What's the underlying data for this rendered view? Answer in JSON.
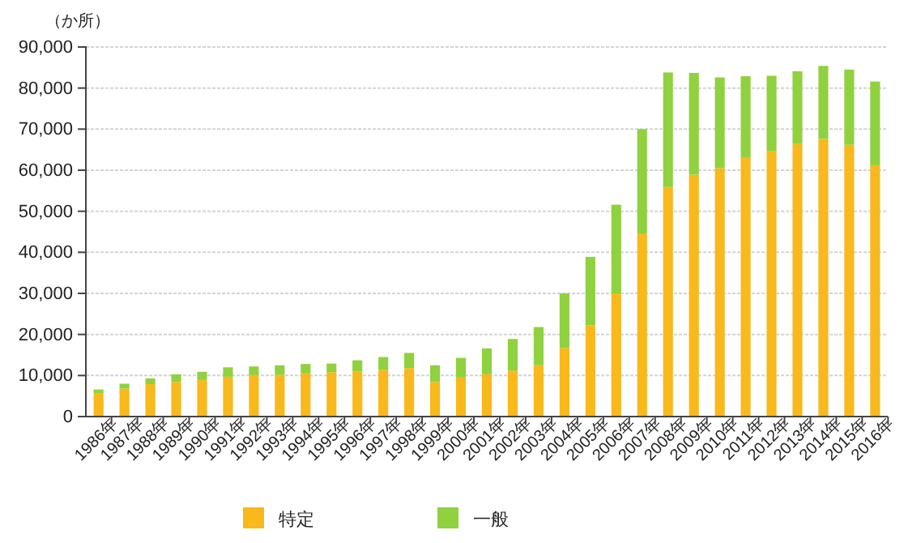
{
  "chart_data": {
    "type": "bar",
    "stacked": true,
    "ylabel": "（か所）",
    "categories": [
      "1986年",
      "1987年",
      "1988年",
      "1989年",
      "1990年",
      "1991年",
      "1992年",
      "1993年",
      "1994年",
      "1995年",
      "1996年",
      "1997年",
      "1998年",
      "1999年",
      "2000年",
      "2001年",
      "2002年",
      "2003年",
      "2004年",
      "2005年",
      "2006年",
      "2007年",
      "2008年",
      "2009年",
      "2010年",
      "2011年",
      "2012年",
      "2013年",
      "2014年",
      "2015年",
      "2016年"
    ],
    "series": [
      {
        "name": "特定",
        "color": "#f9b81b",
        "values": [
          5700,
          6800,
          7900,
          8400,
          8900,
          9700,
          10100,
          10200,
          10500,
          10800,
          11000,
          11400,
          11800,
          8400,
          9500,
          10300,
          11200,
          12500,
          16700,
          22200,
          30000,
          44600,
          55900,
          58900,
          60500,
          63000,
          64600,
          66400,
          67600,
          66200,
          61200
        ]
      },
      {
        "name": "一般",
        "color": "#8fd13f",
        "values": [
          900,
          1200,
          1400,
          1900,
          2000,
          2300,
          2100,
          2300,
          2300,
          2100,
          2700,
          3100,
          3700,
          4100,
          4800,
          6300,
          7700,
          9300,
          13300,
          16700,
          21600,
          25400,
          27900,
          24800,
          22100,
          19900,
          18400,
          17700,
          17800,
          18300,
          20400
        ]
      }
    ],
    "ylim": [
      0,
      90000
    ],
    "yticks": [
      {
        "value": 0,
        "label": "0"
      },
      {
        "value": 10000,
        "label": "10,000"
      },
      {
        "value": 20000,
        "label": "20,000"
      },
      {
        "value": 30000,
        "label": "30,000"
      },
      {
        "value": 40000,
        "label": "40,000"
      },
      {
        "value": 50000,
        "label": "50,000"
      },
      {
        "value": 60000,
        "label": "60,000"
      },
      {
        "value": 70000,
        "label": "70,000"
      },
      {
        "value": 80000,
        "label": "80,000"
      },
      {
        "value": 90000,
        "label": "90,000"
      }
    ],
    "grid": "y",
    "legend": "bottom"
  }
}
